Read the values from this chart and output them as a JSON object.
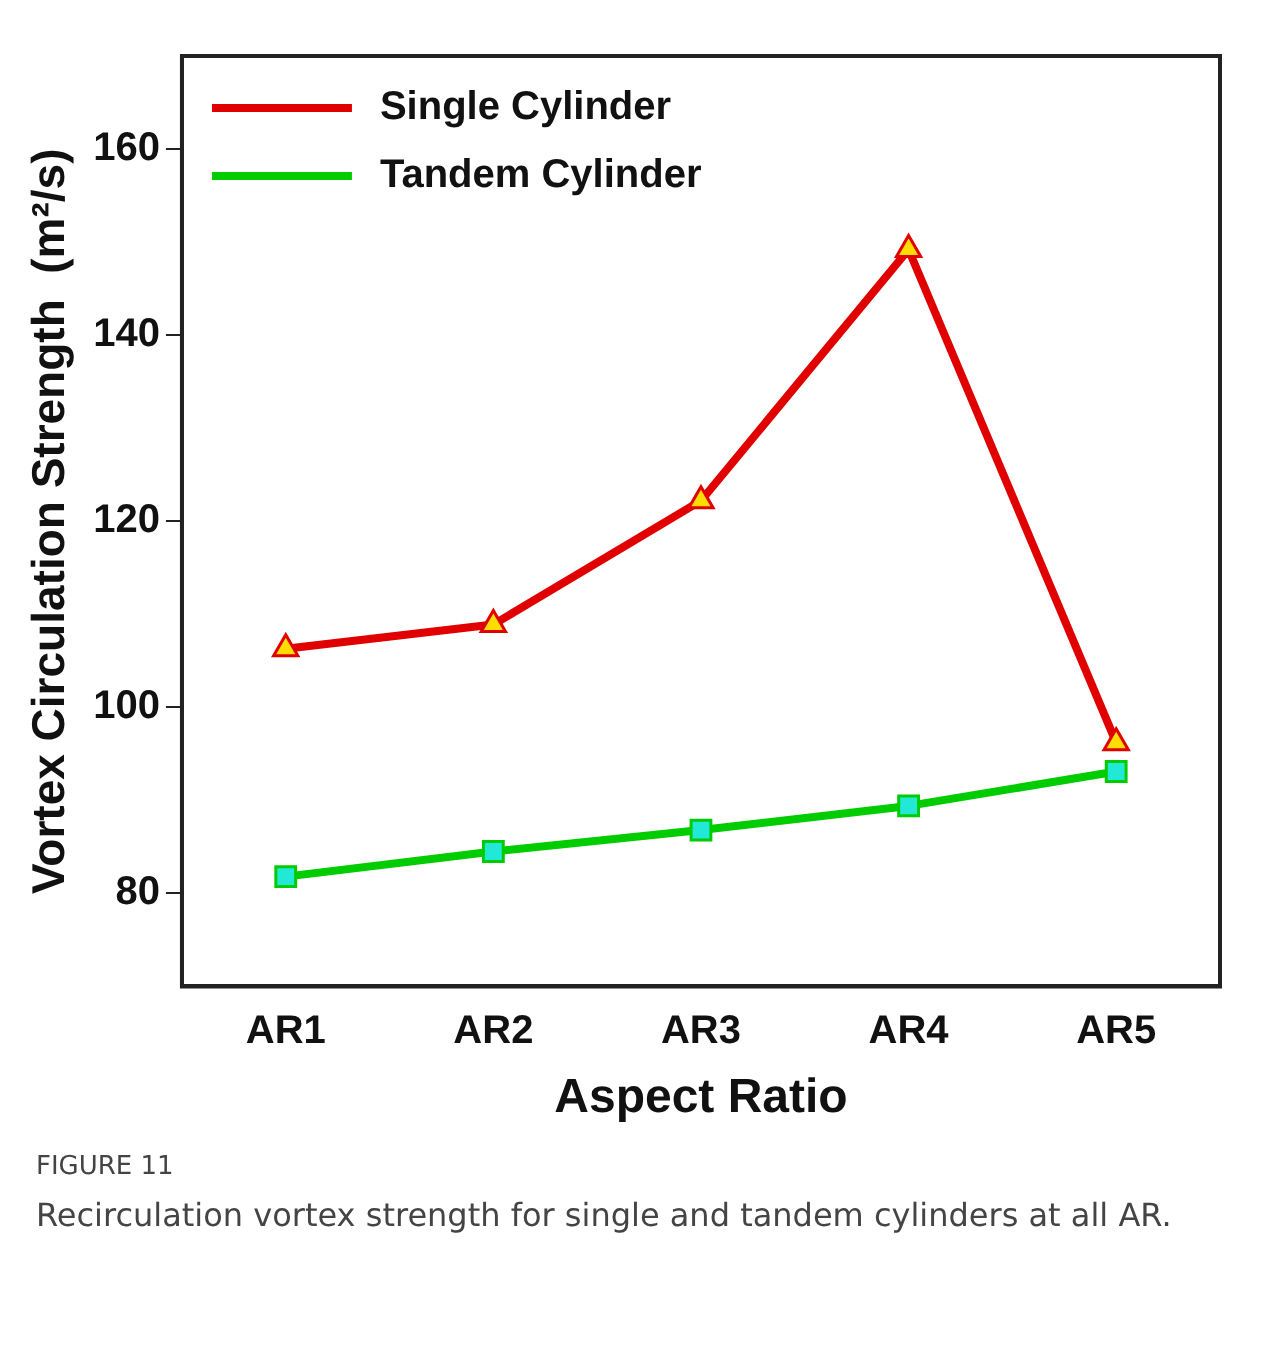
{
  "chart_data": {
    "type": "line",
    "xlabel": "Aspect Ratio",
    "ylabel": "Vortex Circulation Strength  (m²/s)",
    "categories": [
      "AR1",
      "AR2",
      "AR3",
      "AR4",
      "AR5"
    ],
    "series": [
      {
        "name": "Single Cylinder",
        "color": "#e00000",
        "marker": "triangle",
        "values": [
          106.3,
          108.9,
          122.2,
          149.2,
          96.2
        ]
      },
      {
        "name": "Tandem Cylinder",
        "color": "#00cc00",
        "marker": "square",
        "values": [
          81.8,
          84.5,
          86.8,
          89.4,
          93.1
        ]
      }
    ],
    "ylim": [
      70,
      170
    ],
    "yticks": [
      80,
      100,
      120,
      140,
      160
    ],
    "grid": false,
    "legend": "top left",
    "line_style": "solid",
    "annotations": [
      "FIGURE 11",
      "Recirculation vortex strength for single and tandem cylinders at all AR."
    ]
  }
}
